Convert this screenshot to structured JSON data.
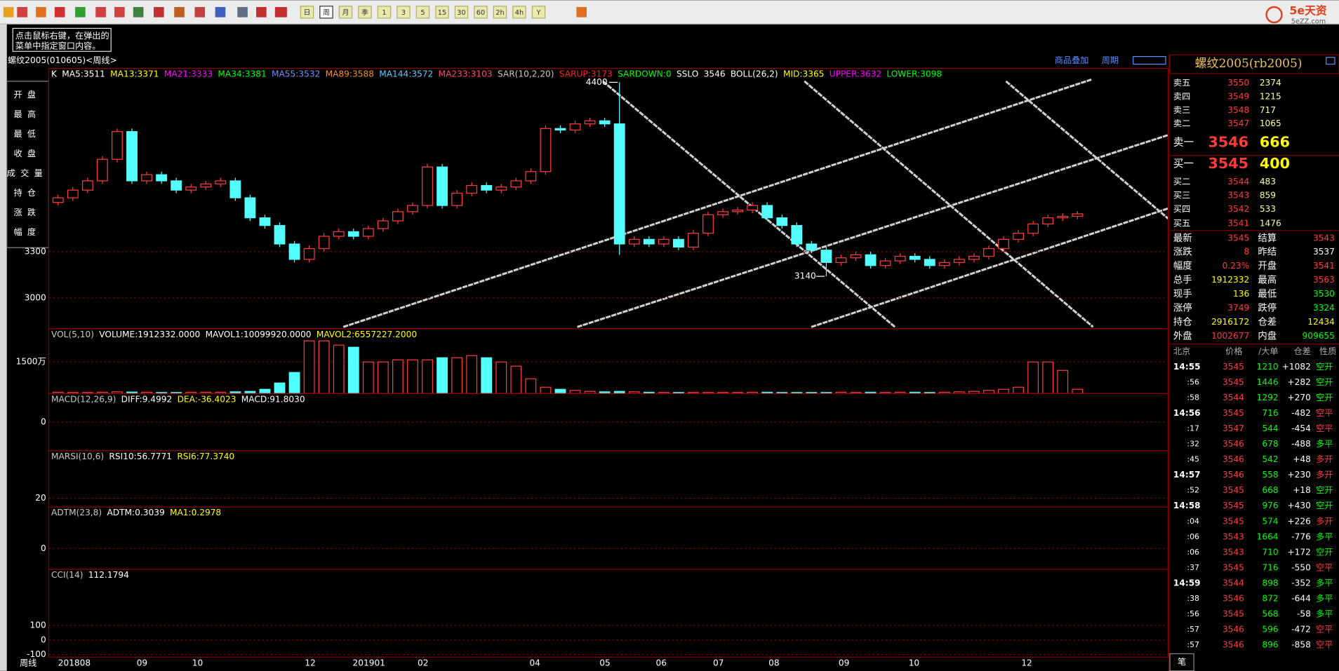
{
  "toolbar": {
    "periods": [
      "日",
      "周",
      "月",
      "季",
      "1",
      "3",
      "5",
      "15",
      "30",
      "60",
      "2h",
      "4h",
      "Y"
    ],
    "logo": "5e天资",
    "logo_url": "5eZZ.com"
  },
  "tooltip": [
    "点击鼠标右键，在弹出的",
    "菜单中指定窗口内容。"
  ],
  "window": {
    "title": "螺纹2005(010605)<周线>",
    "links": [
      "商品叠加",
      "周期"
    ]
  },
  "sidebar": [
    "开盘",
    "最高",
    "最低",
    "收盘",
    "成交量",
    "持仓",
    "涨跌",
    "幅度"
  ],
  "chart_data": [
    {
      "type": "candlestick",
      "legend": [
        {
          "text": "K",
          "color": "#ffffff"
        },
        {
          "text": "MA5:3511",
          "color": "#ffffff"
        },
        {
          "text": "MA13:3371",
          "color": "#ffff00"
        },
        {
          "text": "MA21:3333",
          "color": "#ff00ff"
        },
        {
          "text": "MA34:3381",
          "color": "#00ff00"
        },
        {
          "text": "MA55:3532",
          "color": "#6f8fff"
        },
        {
          "text": "MA89:3588",
          "color": "#ff8c1a"
        },
        {
          "text": "MA144:3572",
          "color": "#5fc8ff"
        },
        {
          "text": "MA233:3103",
          "color": "#ff4a6a"
        },
        {
          "text": "SAR(10,2,20)",
          "color": "#c8c8c8"
        },
        {
          "text": "SARUP:3173",
          "color": "#ff2020"
        },
        {
          "text": "SARDOWN:0",
          "color": "#00ff00"
        },
        {
          "text": "SSLO",
          "color": "#ffffff"
        },
        {
          "text": "3546",
          "color": "#ffffff"
        },
        {
          "text": "BOLL(26,2)",
          "color": "#ffffff"
        },
        {
          "text": "MID:3365",
          "color": "#ffff00"
        },
        {
          "text": "UPPER:3632",
          "color": "#ff00ff"
        },
        {
          "text": "LOWER:3098",
          "color": "#00ff00"
        }
      ],
      "open": [
        3620,
        3650,
        3700,
        3760,
        3900,
        4080,
        3760,
        3800,
        3760,
        3700,
        3720,
        3740,
        3760,
        3650,
        3520,
        3470,
        3350,
        3250,
        3320,
        3400,
        3430,
        3400,
        3450,
        3500,
        3560,
        3600,
        3850,
        3600,
        3680,
        3730,
        3700,
        3720,
        3760,
        3820,
        4100,
        4090,
        4130,
        4150,
        4130,
        3350,
        3380,
        3350,
        3380,
        3330,
        3420,
        3540,
        3560,
        3570,
        3600,
        3520,
        3470,
        3350,
        3310,
        3230,
        3260,
        3280,
        3210,
        3240,
        3270,
        3250,
        3210,
        3230,
        3250,
        3270,
        3320,
        3380,
        3420,
        3480,
        3520,
        3530
      ],
      "high": [
        3670,
        3720,
        3780,
        3920,
        4100,
        4100,
        3820,
        3820,
        3780,
        3740,
        3760,
        3780,
        3780,
        3670,
        3540,
        3490,
        3370,
        3340,
        3420,
        3450,
        3450,
        3470,
        3520,
        3580,
        3620,
        3870,
        3870,
        3700,
        3750,
        3750,
        3740,
        3780,
        3840,
        4120,
        4120,
        4150,
        4170,
        4170,
        4400,
        3400,
        3400,
        3400,
        3400,
        3440,
        3560,
        3580,
        3590,
        3620,
        3620,
        3540,
        3490,
        3370,
        3330,
        3280,
        3300,
        3300,
        3260,
        3290,
        3290,
        3270,
        3250,
        3270,
        3290,
        3340,
        3400,
        3440,
        3500,
        3540,
        3550,
        3563
      ],
      "low": [
        3600,
        3630,
        3680,
        3740,
        3880,
        3740,
        3740,
        3740,
        3680,
        3680,
        3700,
        3720,
        3630,
        3500,
        3450,
        3330,
        3230,
        3230,
        3300,
        3380,
        3380,
        3380,
        3430,
        3480,
        3540,
        3580,
        3580,
        3580,
        3660,
        3680,
        3680,
        3700,
        3740,
        3800,
        4070,
        4070,
        4110,
        4110,
        3280,
        3330,
        3330,
        3330,
        3310,
        3310,
        3400,
        3520,
        3540,
        3550,
        3500,
        3450,
        3330,
        3290,
        3140,
        3210,
        3240,
        3190,
        3190,
        3220,
        3230,
        3190,
        3190,
        3210,
        3230,
        3250,
        3300,
        3360,
        3400,
        3460,
        3500,
        3510
      ],
      "close": [
        3650,
        3700,
        3760,
        3900,
        4080,
        3760,
        3800,
        3760,
        3700,
        3720,
        3740,
        3760,
        3650,
        3520,
        3470,
        3350,
        3250,
        3320,
        3400,
        3430,
        3400,
        3450,
        3500,
        3560,
        3600,
        3850,
        3600,
        3680,
        3730,
        3700,
        3720,
        3760,
        3820,
        4100,
        4090,
        4130,
        4150,
        4130,
        3350,
        3380,
        3350,
        3380,
        3330,
        3420,
        3540,
        3560,
        3570,
        3600,
        3520,
        3470,
        3350,
        3310,
        3230,
        3260,
        3280,
        3210,
        3240,
        3270,
        3250,
        3210,
        3230,
        3250,
        3270,
        3320,
        3380,
        3420,
        3480,
        3520,
        3530,
        3546
      ],
      "ylim": [
        2800,
        4490
      ],
      "yticks": [
        3000,
        3300
      ],
      "annotations": [
        4400,
        3140
      ],
      "up_color": "#ff3c3c",
      "down_color": "#54ffff"
    },
    {
      "type": "bar",
      "legend": [
        {
          "text": "VOL(5,10)",
          "color": "#c8c8c8"
        },
        {
          "text": "VOLUME:1912332.0000",
          "color": "#ffffff"
        },
        {
          "text": "MAVOL1:10099920.0000",
          "color": "#ffffff"
        },
        {
          "text": "MAVOL2:6557227.2000",
          "color": "#ffff00"
        }
      ],
      "values": [
        60,
        50,
        50,
        60,
        80,
        70,
        60,
        50,
        50,
        60,
        60,
        60,
        80,
        100,
        200,
        500,
        1000,
        2500,
        2500,
        2300,
        2200,
        1500,
        1500,
        1600,
        1600,
        1600,
        1700,
        1700,
        1800,
        1700,
        1500,
        1300,
        700,
        300,
        200,
        150,
        100,
        80,
        100,
        80,
        60,
        50,
        50,
        50,
        50,
        50,
        50,
        60,
        60,
        50,
        50,
        50,
        50,
        60,
        50,
        60,
        50,
        60,
        60,
        50,
        60,
        80,
        100,
        150,
        200,
        300,
        1500,
        1500,
        1100,
        200
      ],
      "ylim": [
        0,
        3080
      ],
      "yticks": [
        {
          "value": 1500,
          "label": "1500万"
        }
      ]
    },
    {
      "type": "indicator",
      "legend": [
        {
          "text": "MACD(12,26,9)",
          "color": "#c8c8c8"
        },
        {
          "text": "DIFF:9.4992",
          "color": "#ffffff"
        },
        {
          "text": "DEA:-36.4023",
          "color": "#ffff00"
        },
        {
          "text": "MACD:91.8030",
          "color": "#ffffff"
        }
      ],
      "ylim": [
        -120,
        120
      ],
      "yticks": [
        0
      ]
    },
    {
      "type": "indicator",
      "legend": [
        {
          "text": "MARSI(10,6)",
          "color": "#c8c8c8"
        },
        {
          "text": "RSI10:56.7771",
          "color": "#ffffff"
        },
        {
          "text": "RSI6:77.3740",
          "color": "#ffff00"
        }
      ],
      "ylim": [
        0,
        128
      ],
      "yticks": [
        20
      ]
    },
    {
      "type": "indicator",
      "legend": [
        {
          "text": "ADTM(23,8)",
          "color": "#c8c8c8"
        },
        {
          "text": "ADTM:0.3039",
          "color": "#ffffff"
        },
        {
          "text": "MA1:0.2978",
          "color": "#ffff00"
        }
      ],
      "ylim": [
        -0.5,
        1
      ],
      "yticks": [
        0
      ]
    },
    {
      "type": "indicator",
      "legend": [
        {
          "text": "CCI(14)",
          "color": "#c8c8c8"
        },
        {
          "text": "112.1794",
          "color": "#ffffff"
        }
      ],
      "ylim": [
        -118,
        488
      ],
      "yticks": [
        100,
        0,
        -100
      ]
    }
  ],
  "x_axis": {
    "title": "周线",
    "labels": [
      "201808",
      "09",
      "10",
      "12",
      "201901",
      "02",
      "04",
      "05",
      "06",
      "07",
      "08",
      "09",
      "10",
      "12"
    ]
  },
  "quote": {
    "title": "螺纹2005(rb2005)",
    "asks": [
      {
        "label": "卖五",
        "price": 3550,
        "volume": 2374
      },
      {
        "label": "卖四",
        "price": 3549,
        "volume": 1215
      },
      {
        "label": "卖三",
        "price": 3548,
        "volume": 717
      },
      {
        "label": "卖二",
        "price": 3547,
        "volume": 1065
      },
      {
        "label": "卖一",
        "price": 3546,
        "volume": 666
      }
    ],
    "bids": [
      {
        "label": "买一",
        "price": 3545,
        "volume": 400
      },
      {
        "label": "买二",
        "price": 3544,
        "volume": 483
      },
      {
        "label": "买三",
        "price": 3543,
        "volume": 859
      },
      {
        "label": "买四",
        "price": 3542,
        "volume": 533
      },
      {
        "label": "买五",
        "price": 3541,
        "volume": 1476
      }
    ],
    "stats": [
      [
        "最新",
        3545,
        "结算",
        3543
      ],
      [
        "涨跌",
        8,
        "昨结",
        3537
      ],
      [
        "幅度",
        "0.23%",
        "开盘",
        3541
      ],
      [
        "总手",
        1912332,
        "最高",
        3563
      ],
      [
        "现手",
        136,
        "最低",
        3530
      ],
      [
        "涨停",
        3749,
        "跌停",
        3324
      ],
      [
        "持仓",
        2916172,
        "仓差",
        12434
      ],
      [
        "外盘",
        1002677,
        "内盘",
        909655
      ]
    ]
  },
  "ticks": {
    "header": [
      "北京",
      "价格",
      "∕大单",
      "仓差",
      "性质"
    ],
    "rows": [
      [
        "14:55",
        3545,
        1210,
        "+1082",
        "空开"
      ],
      [
        ":56",
        3545,
        1446,
        "+282",
        "空开"
      ],
      [
        ":58",
        3544,
        1292,
        "+270",
        "空开"
      ],
      [
        "14:56",
        3545,
        716,
        "-482",
        "空平"
      ],
      [
        ":17",
        3547,
        544,
        "-454",
        "空平"
      ],
      [
        ":32",
        3546,
        678,
        "-488",
        "多平"
      ],
      [
        ":45",
        3546,
        542,
        "+48",
        "多开"
      ],
      [
        "14:57",
        3546,
        558,
        "+230",
        "多开"
      ],
      [
        ":52",
        3545,
        668,
        "+18",
        "空开"
      ],
      [
        "14:58",
        3545,
        976,
        "+430",
        "空开"
      ],
      [
        ":04",
        3545,
        574,
        "+226",
        "多开"
      ],
      [
        ":06",
        3543,
        1664,
        "-776",
        "多平"
      ],
      [
        ":06",
        3543,
        710,
        "+172",
        "空开"
      ],
      [
        ":37",
        3545,
        716,
        "-550",
        "空平"
      ],
      [
        "14:59",
        3544,
        898,
        "-352",
        "多平"
      ],
      [
        ":38",
        3546,
        872,
        "-644",
        "多平"
      ],
      [
        ":56",
        3545,
        568,
        "-58",
        "多平"
      ],
      [
        ":57",
        3546,
        596,
        "-472",
        "空平"
      ],
      [
        ":57",
        3546,
        896,
        "-858",
        "空平"
      ]
    ]
  },
  "tab": "笔"
}
